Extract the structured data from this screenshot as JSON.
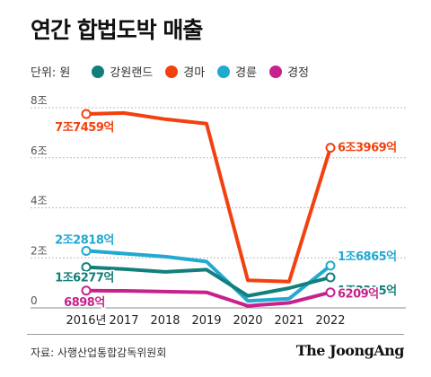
{
  "title": "연간 합법도박 매출",
  "legend": {
    "unit_label": "단위: 원",
    "items": [
      {
        "label": "강원랜드",
        "color": "#137f7c"
      },
      {
        "label": "경마",
        "color": "#f2410e"
      },
      {
        "label": "경륜",
        "color": "#21a9d1"
      },
      {
        "label": "경정",
        "color": "#c7228c"
      }
    ]
  },
  "source": "자료: 사행산업통합감독위원회",
  "brand": "The JoongAng",
  "chart_data": {
    "type": "line",
    "x": [
      "2016년",
      "2017",
      "2018",
      "2019",
      "2020",
      "2021",
      "2022"
    ],
    "ylim": [
      0,
      8
    ],
    "yticks": [
      0,
      2,
      4,
      6,
      8
    ],
    "ytick_labels": [
      "0",
      "2조",
      "4조",
      "6조",
      "8조"
    ],
    "grid": true,
    "series": [
      {
        "name": "강원랜드",
        "color": "#137f7c",
        "values": [
          1.63,
          1.55,
          1.44,
          1.53,
          0.48,
          0.79,
          1.22
        ],
        "start_label": "1조6277억",
        "end_label": "1조2235억"
      },
      {
        "name": "경마",
        "color": "#f2410e",
        "values": [
          7.75,
          7.79,
          7.54,
          7.36,
          1.1,
          1.05,
          6.4
        ],
        "start_label": "7조7459억",
        "end_label": "6조3969억"
      },
      {
        "name": "경륜",
        "color": "#21a9d1",
        "values": [
          2.28,
          2.17,
          2.05,
          1.85,
          0.28,
          0.37,
          1.69
        ],
        "start_label": "2조2818억",
        "end_label": "1조6865억"
      },
      {
        "name": "경정",
        "color": "#c7228c",
        "values": [
          0.69,
          0.68,
          0.65,
          0.62,
          0.08,
          0.2,
          0.62
        ],
        "start_label": "6898억",
        "end_label": "6209억"
      }
    ]
  }
}
